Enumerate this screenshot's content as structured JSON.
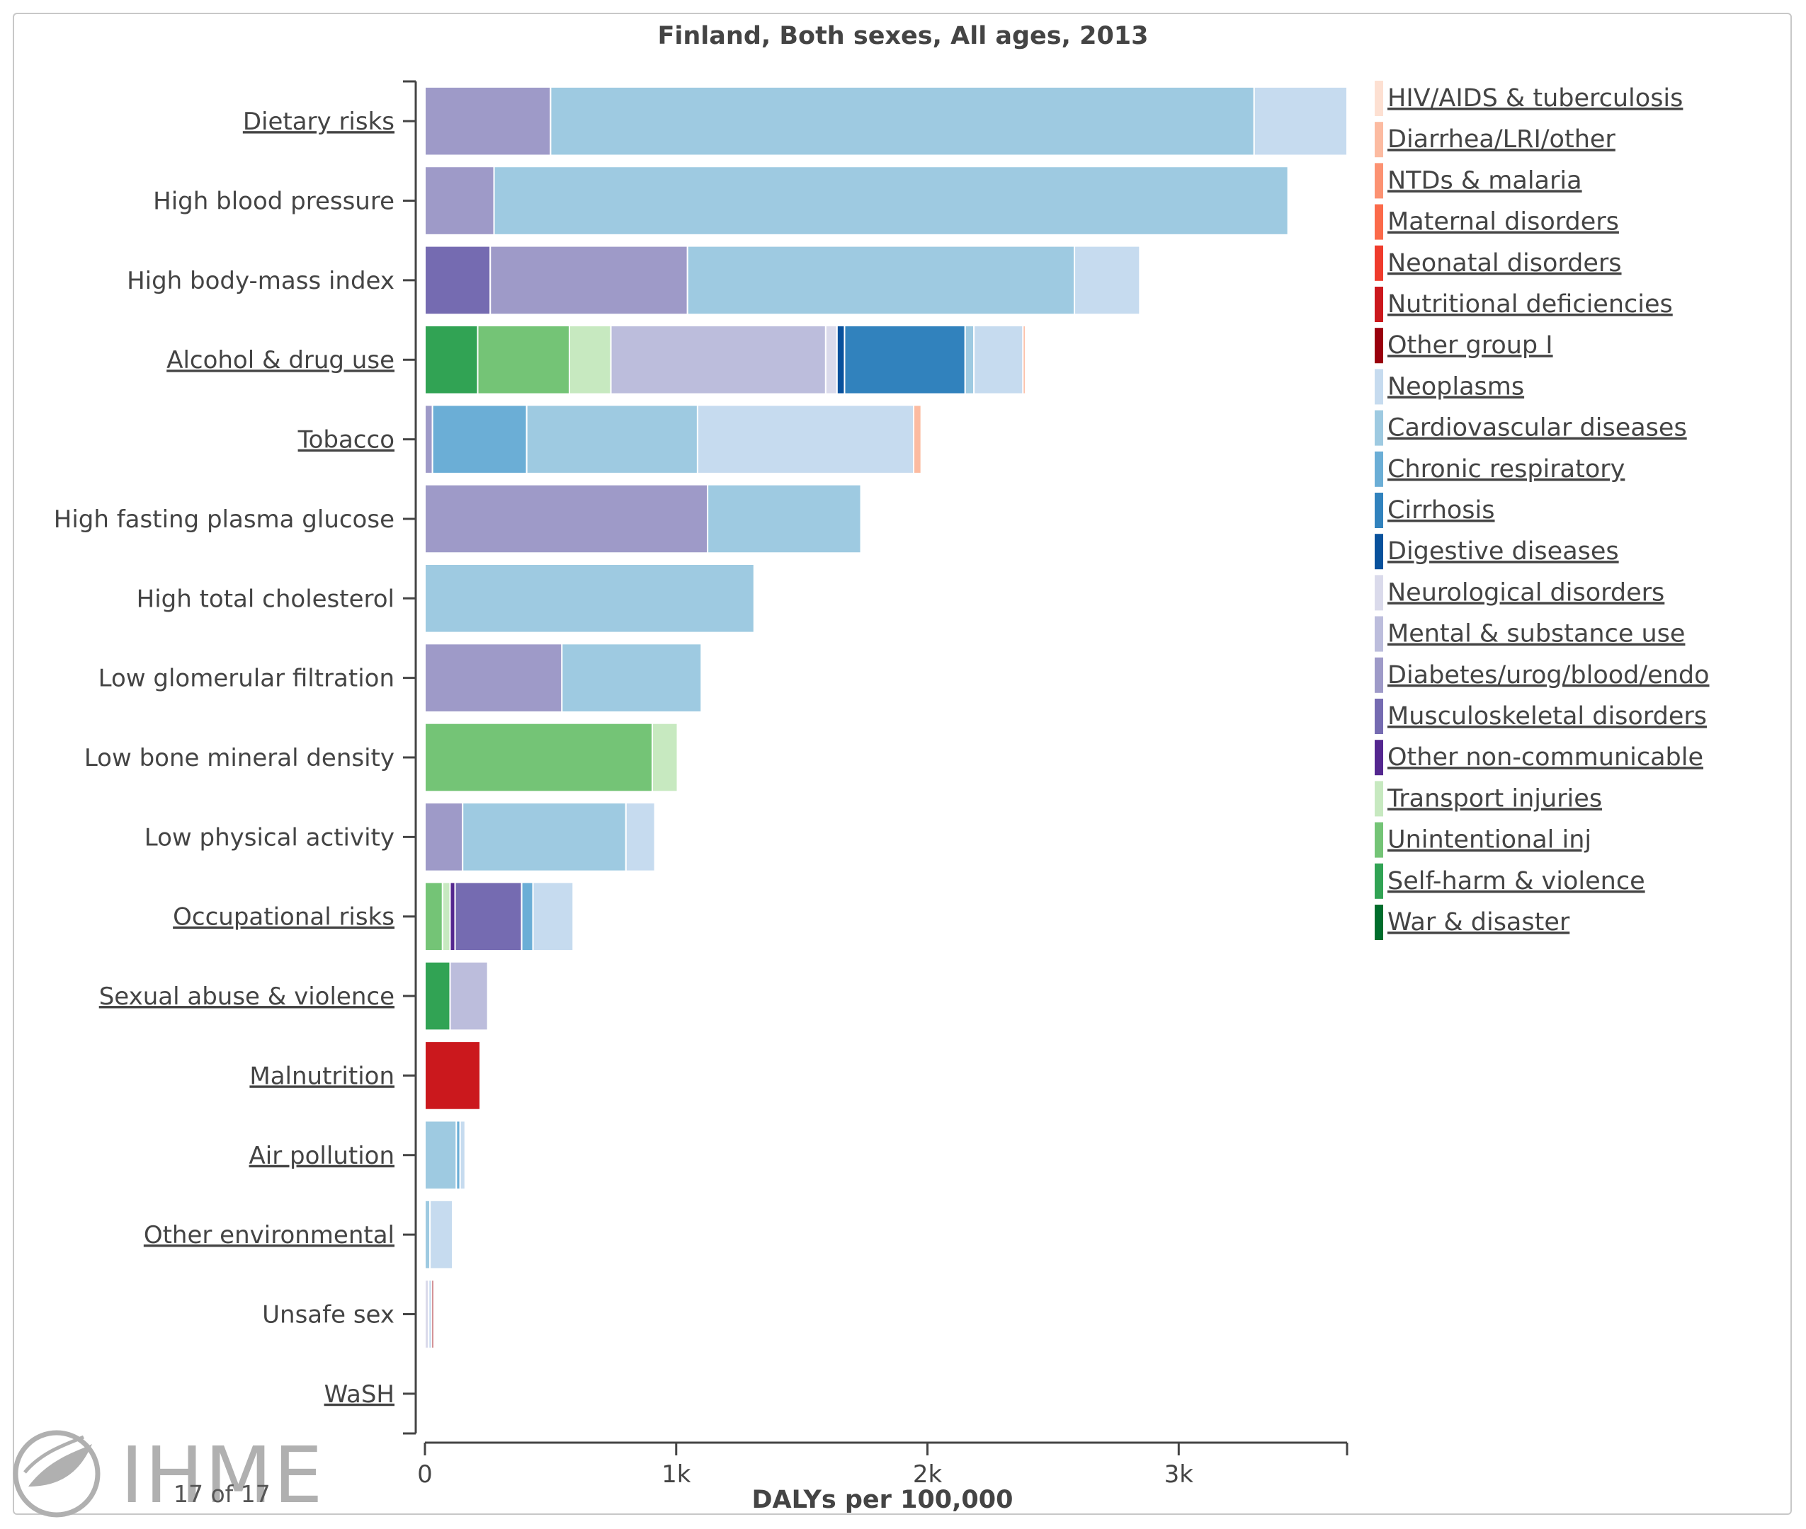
{
  "chart_data": {
    "type": "bar",
    "orientation": "horizontal",
    "stacked": true,
    "title": "Finland, Both sexes, All ages, 2013",
    "xlabel": "DALYs per 100,000",
    "ylabel": "",
    "xlim": [
      0,
      3670
    ],
    "x_ticks": [
      {
        "value": 0,
        "label": "0"
      },
      {
        "value": 1000,
        "label": "1k"
      },
      {
        "value": 2000,
        "label": "2k"
      },
      {
        "value": 3000,
        "label": "3k"
      }
    ],
    "grid": false,
    "legend_position": "right",
    "categories": [
      {
        "label": "Dietary risks",
        "link": true
      },
      {
        "label": "High blood pressure",
        "link": false
      },
      {
        "label": "High body-mass index",
        "link": false
      },
      {
        "label": "Alcohol & drug use",
        "link": true
      },
      {
        "label": "Tobacco",
        "link": true
      },
      {
        "label": "High fasting plasma glucose",
        "link": false
      },
      {
        "label": "High total cholesterol",
        "link": false
      },
      {
        "label": "Low glomerular filtration",
        "link": false
      },
      {
        "label": "Low bone mineral density",
        "link": false
      },
      {
        "label": "Low physical activity",
        "link": false
      },
      {
        "label": "Occupational risks",
        "link": true
      },
      {
        "label": "Sexual abuse & violence",
        "link": true
      },
      {
        "label": "Malnutrition",
        "link": true
      },
      {
        "label": "Air pollution",
        "link": true
      },
      {
        "label": "Other environmental",
        "link": true
      },
      {
        "label": "Unsafe sex",
        "link": false
      },
      {
        "label": "WaSH",
        "link": true
      }
    ],
    "series": [
      {
        "name": "HIV/AIDS & tuberculosis",
        "color": "#fde0d2",
        "values": [
          0,
          0,
          0,
          0,
          0,
          0,
          0,
          0,
          0,
          0,
          0,
          0,
          0,
          0,
          0,
          0,
          0
        ]
      },
      {
        "name": "Diarrhea/LRI/other",
        "color": "#fcbba1",
        "values": [
          0,
          0,
          0,
          10,
          30,
          0,
          0,
          0,
          0,
          0,
          0,
          0,
          0,
          0,
          0,
          0,
          0
        ]
      },
      {
        "name": "NTDs & malaria",
        "color": "#fc9272",
        "values": [
          0,
          0,
          0,
          0,
          0,
          0,
          0,
          0,
          0,
          0,
          0,
          0,
          0,
          0,
          0,
          0,
          0
        ]
      },
      {
        "name": "Maternal disorders",
        "color": "#fb6a4a",
        "values": [
          0,
          0,
          0,
          0,
          0,
          0,
          0,
          0,
          0,
          0,
          0,
          0,
          0,
          0,
          0,
          0,
          0
        ]
      },
      {
        "name": "Neonatal disorders",
        "color": "#ef3b2c",
        "values": [
          0,
          0,
          0,
          0,
          0,
          0,
          0,
          0,
          0,
          0,
          0,
          0,
          0,
          0,
          0,
          0,
          0
        ]
      },
      {
        "name": "Nutritional deficiencies",
        "color": "#cb181d",
        "values": [
          0,
          0,
          0,
          0,
          0,
          0,
          0,
          0,
          0,
          0,
          0,
          0,
          220,
          0,
          0,
          0,
          0
        ]
      },
      {
        "name": "Other group I",
        "color": "#99000d",
        "values": [
          0,
          0,
          0,
          0,
          0,
          0,
          0,
          0,
          0,
          0,
          0,
          0,
          0,
          0,
          0,
          8,
          0
        ]
      },
      {
        "name": "Neoplasms",
        "color": "#c6dbef",
        "values": [
          370,
          0,
          260,
          195,
          860,
          0,
          0,
          0,
          0,
          115,
          160,
          0,
          0,
          20,
          90,
          12,
          0
        ]
      },
      {
        "name": "Cardiovascular diseases",
        "color": "#9ecae1",
        "values": [
          2800,
          3160,
          1540,
          35,
          680,
          610,
          1310,
          555,
          0,
          650,
          0,
          0,
          0,
          125,
          20,
          0,
          0
        ]
      },
      {
        "name": "Chronic respiratory",
        "color": "#6baed6",
        "values": [
          0,
          0,
          0,
          0,
          375,
          0,
          0,
          0,
          0,
          0,
          45,
          0,
          0,
          15,
          0,
          0,
          0
        ]
      },
      {
        "name": "Cirrhosis",
        "color": "#3182bd",
        "values": [
          0,
          0,
          0,
          480,
          0,
          0,
          0,
          0,
          0,
          0,
          0,
          0,
          0,
          0,
          0,
          0,
          0
        ]
      },
      {
        "name": "Digestive diseases",
        "color": "#08519c",
        "values": [
          0,
          0,
          0,
          30,
          0,
          0,
          0,
          0,
          0,
          0,
          0,
          0,
          0,
          0,
          0,
          0,
          0
        ]
      },
      {
        "name": "Neurological disorders",
        "color": "#dadaeb",
        "values": [
          0,
          0,
          0,
          45,
          0,
          0,
          0,
          0,
          0,
          0,
          0,
          0,
          0,
          0,
          0,
          15,
          0
        ]
      },
      {
        "name": "Mental & substance use",
        "color": "#bcbddc",
        "values": [
          0,
          0,
          0,
          855,
          0,
          0,
          0,
          0,
          0,
          0,
          0,
          150,
          0,
          0,
          0,
          0,
          0
        ]
      },
      {
        "name": "Diabetes/urog/blood/endo",
        "color": "#9e9ac8",
        "values": [
          500,
          275,
          785,
          0,
          30,
          1125,
          0,
          545,
          0,
          150,
          0,
          0,
          0,
          0,
          0,
          0,
          0
        ]
      },
      {
        "name": "Musculoskeletal disorders",
        "color": "#756bb1",
        "values": [
          0,
          0,
          260,
          0,
          0,
          0,
          0,
          0,
          0,
          0,
          265,
          0,
          0,
          0,
          0,
          0,
          0
        ]
      },
      {
        "name": "Other non-communicable",
        "color": "#54278f",
        "values": [
          0,
          0,
          0,
          0,
          0,
          0,
          0,
          0,
          0,
          0,
          20,
          0,
          0,
          0,
          0,
          0,
          0
        ]
      },
      {
        "name": "Transport injuries",
        "color": "#c7e9c0",
        "values": [
          0,
          0,
          0,
          165,
          0,
          0,
          0,
          0,
          100,
          0,
          30,
          0,
          0,
          0,
          0,
          0,
          0
        ]
      },
      {
        "name": "Unintentional inj",
        "color": "#74c476",
        "values": [
          0,
          0,
          0,
          365,
          0,
          0,
          0,
          0,
          905,
          0,
          70,
          0,
          0,
          0,
          0,
          0,
          0
        ]
      },
      {
        "name": "Self-harm & violence",
        "color": "#31a354",
        "values": [
          0,
          0,
          0,
          210,
          0,
          0,
          0,
          0,
          0,
          0,
          0,
          100,
          0,
          0,
          0,
          0,
          0
        ]
      },
      {
        "name": "War & disaster",
        "color": "#006d2c",
        "values": [
          0,
          0,
          0,
          0,
          0,
          0,
          0,
          0,
          0,
          0,
          0,
          0,
          0,
          0,
          0,
          0,
          0
        ]
      }
    ],
    "stack_order_per_category": [
      [
        "Diabetes/urog/blood/endo",
        "Cardiovascular diseases",
        "Neoplasms"
      ],
      [
        "Diabetes/urog/blood/endo",
        "Cardiovascular diseases"
      ],
      [
        "Musculoskeletal disorders",
        "Diabetes/urog/blood/endo",
        "Cardiovascular diseases",
        "Neoplasms"
      ],
      [
        "Self-harm & violence",
        "Unintentional inj",
        "Transport injuries",
        "Mental & substance use",
        "Neurological disorders",
        "Digestive diseases",
        "Cirrhosis",
        "Cardiovascular diseases",
        "Neoplasms",
        "Diarrhea/LRI/other"
      ],
      [
        "Diabetes/urog/blood/endo",
        "Chronic respiratory",
        "Cardiovascular diseases",
        "Neoplasms",
        "Diarrhea/LRI/other"
      ],
      [
        "Diabetes/urog/blood/endo",
        "Cardiovascular diseases"
      ],
      [
        "Cardiovascular diseases"
      ],
      [
        "Diabetes/urog/blood/endo",
        "Cardiovascular diseases"
      ],
      [
        "Unintentional inj",
        "Transport injuries"
      ],
      [
        "Diabetes/urog/blood/endo",
        "Cardiovascular diseases",
        "Neoplasms"
      ],
      [
        "Unintentional inj",
        "Transport injuries",
        "Other non-communicable",
        "Musculoskeletal disorders",
        "Chronic respiratory",
        "Neoplasms"
      ],
      [
        "Self-harm & violence",
        "Mental & substance use"
      ],
      [
        "Nutritional deficiencies"
      ],
      [
        "Cardiovascular diseases",
        "Chronic respiratory",
        "Neoplasms"
      ],
      [
        "Cardiovascular diseases",
        "Neoplasms"
      ],
      [
        "Neurological disorders",
        "Neoplasms",
        "Other group I"
      ],
      []
    ]
  },
  "footer": {
    "logo_text": "IHME",
    "pager": "17 of 17"
  }
}
